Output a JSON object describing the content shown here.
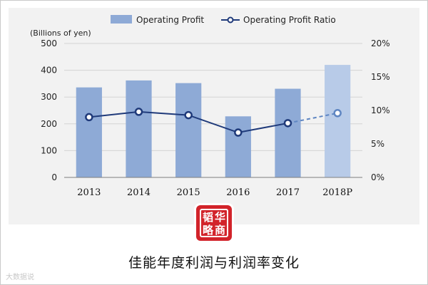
{
  "chart_data": {
    "type": "bar+line",
    "categories": [
      "2013",
      "2014",
      "2015",
      "2016",
      "2017",
      "2018P"
    ],
    "y_left_label": "(Billions of yen)",
    "y_left_range": [
      0,
      500
    ],
    "y_left_ticks": [
      "0",
      "100",
      "200",
      "300",
      "400",
      "500"
    ],
    "y_right_range": [
      0,
      20
    ],
    "y_right_ticks": [
      "0%",
      "5%",
      "10%",
      "15%",
      "20%"
    ],
    "legend_position": "top-center",
    "grid": true,
    "series": [
      {
        "name": "Operating Profit",
        "type": "bar",
        "axis": "left",
        "values": [
          336,
          362,
          352,
          228,
          331,
          420
        ],
        "projected_from_index": 5,
        "color": "#8eaad6",
        "projected_color": "#b8cbe8"
      },
      {
        "name": "Operating Profit Ratio",
        "type": "line",
        "axis": "right",
        "values": [
          9.0,
          9.8,
          9.3,
          6.7,
          8.1,
          9.6
        ],
        "projected_from_index": 5,
        "color": "#1f3a7a",
        "projected_color": "#5f86c2"
      }
    ]
  },
  "logo": {
    "chars": [
      "韬",
      "华",
      "略",
      "商"
    ],
    "color": "#d2232a"
  },
  "caption": "佳能年度利润与利润率变化",
  "watermark": "大数据说"
}
